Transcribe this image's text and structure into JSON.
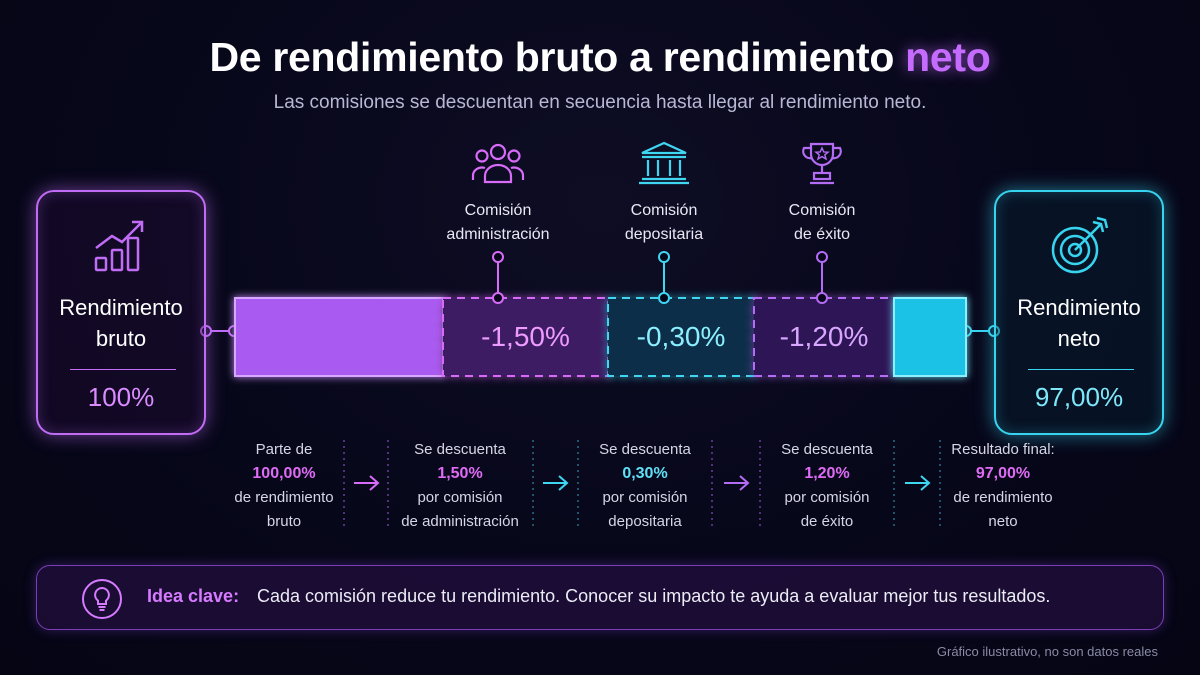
{
  "title": {
    "main": "De rendimiento bruto a rendimiento ",
    "highlight": "neto"
  },
  "subtitle": "Las comisiones se descuentan en secuencia hasta llegar al rendimiento neto.",
  "gross": {
    "label_line1": "Rendimiento",
    "label_line2": "bruto",
    "value": "100%",
    "icon": "chart-growth-icon"
  },
  "net": {
    "label_line1": "Rendimiento",
    "label_line2": "neto",
    "value": "97,00%",
    "icon": "target-icon"
  },
  "fees": [
    {
      "line1": "Comisión",
      "line2": "administración",
      "value": "-1,50%",
      "icon": "people-icon"
    },
    {
      "line1": "Comisión",
      "line2": "depositaria",
      "value": "-0,30%",
      "icon": "bank-icon"
    },
    {
      "line1": "Comisión",
      "line2": "de éxito",
      "value": "-1,20%",
      "icon": "trophy-icon"
    }
  ],
  "flow": [
    {
      "line1": "Parte de",
      "pct": "100,00%",
      "line3": "de rendimiento",
      "line4": "bruto"
    },
    {
      "line1": "Se descuenta",
      "pct": "1,50%",
      "line3": "por comisión",
      "line4": "de administración"
    },
    {
      "line1": "Se descuenta",
      "pct": "0,30%",
      "line3": "por comisión",
      "line4": "depositaria"
    },
    {
      "line1": "Se descuenta",
      "pct": "1,20%",
      "line3": "por comisión",
      "line4": "de éxito"
    },
    {
      "line1": "Resultado final:",
      "pct": "97,00%",
      "line3": "de rendimiento",
      "line4": "neto"
    }
  ],
  "key_idea": {
    "label": "Idea clave:",
    "text": "Cada comisión reduce tu rendimiento. Conocer su impacto te ayuda a evaluar mejor tus resultados.",
    "icon": "lightbulb-icon"
  },
  "footnote": "Gráfico ilustrativo, no son datos reales",
  "colors": {
    "purple": "#c06cf5",
    "cyan": "#37d4f0",
    "background": "#07071a"
  }
}
